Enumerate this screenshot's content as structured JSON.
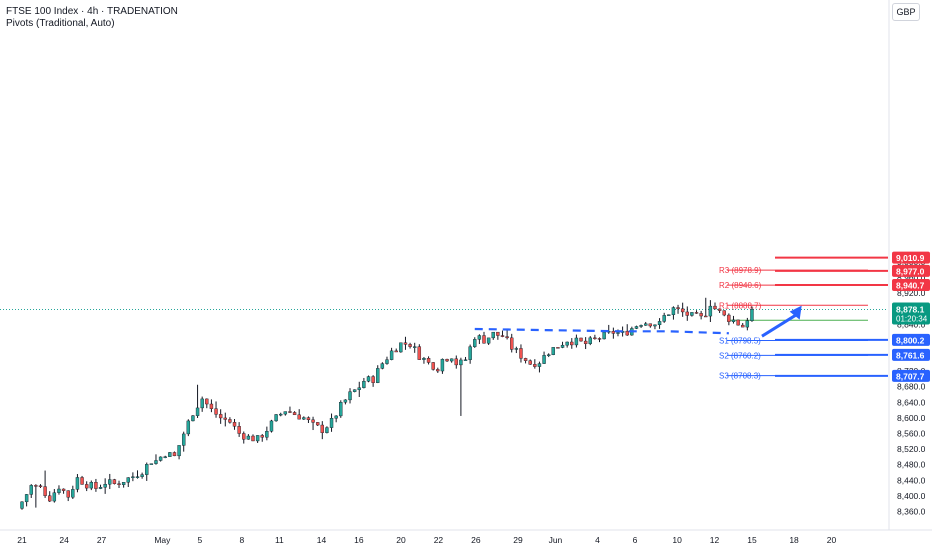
{
  "header": {
    "title": "FTSE 100 Index · 4h · TRADENATION",
    "indicator": "Pivots (Traditional, Auto)"
  },
  "currency": "GBP",
  "colors": {
    "up": "#26a69a",
    "down": "#ef5350",
    "wick": "#131722",
    "resistance": "#f23645",
    "support": "#2962ff",
    "pivot": "#4caf50",
    "price": "#089981",
    "dotted": "#26a69a"
  },
  "chart_data": {
    "type": "candlestick",
    "y_range": [
      8340,
      9020
    ],
    "y_ticks": [
      {
        "value": 9000,
        "label": "9,000.0"
      },
      {
        "value": 8960,
        "label": "8,960.0"
      },
      {
        "value": 8920,
        "label": "8,920.0"
      },
      {
        "value": 8880,
        "label": "8,880.0"
      },
      {
        "value": 8840,
        "label": "8,840.0"
      },
      {
        "value": 8800,
        "label": "8,800.0"
      },
      {
        "value": 8760,
        "label": "8,760.0"
      },
      {
        "value": 8720,
        "label": "8,720.0"
      },
      {
        "value": 8680,
        "label": "8,680.0"
      },
      {
        "value": 8640,
        "label": "8,640.0"
      },
      {
        "value": 8600,
        "label": "8,600.0"
      },
      {
        "value": 8560,
        "label": "8,560.0"
      },
      {
        "value": 8520,
        "label": "8,520.0"
      },
      {
        "value": 8480,
        "label": "8,480.0"
      },
      {
        "value": 8440,
        "label": "8,440.0"
      },
      {
        "value": 8400,
        "label": "8,400.0"
      },
      {
        "value": 8360,
        "label": "8,360.0"
      }
    ],
    "x_range": [
      0,
      184
    ],
    "x_labels": [
      {
        "label": "21",
        "x": 0
      },
      {
        "label": "24",
        "x": 9
      },
      {
        "label": "27",
        "x": 17
      },
      {
        "label": "May",
        "x": 30
      },
      {
        "label": "5",
        "x": 38
      },
      {
        "label": "8",
        "x": 47
      },
      {
        "label": "11",
        "x": 55
      },
      {
        "label": "14",
        "x": 64
      },
      {
        "label": "16",
        "x": 72
      },
      {
        "label": "20",
        "x": 81
      },
      {
        "label": "22",
        "x": 89
      },
      {
        "label": "26",
        "x": 97
      },
      {
        "label": "29",
        "x": 106
      },
      {
        "label": "Jun",
        "x": 114
      },
      {
        "label": "4",
        "x": 123
      },
      {
        "label": "6",
        "x": 131
      },
      {
        "label": "10",
        "x": 140
      },
      {
        "label": "12",
        "x": 148
      },
      {
        "label": "15",
        "x": 156
      },
      {
        "label": "18",
        "x": 165
      },
      {
        "label": "20",
        "x": 173
      }
    ],
    "pivots": [
      {
        "label": "R3 (8978.9)",
        "value": 8978.9,
        "kind": "resistance"
      },
      {
        "label": "R2 (8940.6)",
        "value": 8940.6,
        "kind": "resistance"
      },
      {
        "label": "R1 (8888.7)",
        "value": 8888.7,
        "kind": "resistance"
      },
      {
        "label": "P",
        "value": 8850.4,
        "kind": "pivot"
      },
      {
        "label": "S1 (8798.5)",
        "value": 8798.5,
        "kind": "support"
      },
      {
        "label": "S2 (8760.2)",
        "value": 8760.2,
        "kind": "support"
      },
      {
        "label": "S3 (8708.3)",
        "value": 8708.3,
        "kind": "support"
      }
    ],
    "price_tags": [
      {
        "label": "9,010.9",
        "value": 9010.9,
        "kind": "resistance"
      },
      {
        "label": "8,977.0",
        "value": 8977.0,
        "kind": "resistance"
      },
      {
        "label": "8,940.7",
        "value": 8940.7,
        "kind": "resistance"
      },
      {
        "label": "8,800.2",
        "value": 8800.2,
        "kind": "support"
      },
      {
        "label": "8,761.6",
        "value": 8761.6,
        "kind": "support"
      },
      {
        "label": "8,707.7",
        "value": 8707.7,
        "kind": "support"
      }
    ],
    "last_price": {
      "label": "8,878.1",
      "value": 8878.1,
      "countdown": "01:20:34"
    },
    "drawn_lines": [
      {
        "name": "resistance-ray-9010",
        "x1": 153,
        "y1": 9010.9,
        "x2": 184,
        "y2": 9010.9,
        "kind": "resistance"
      },
      {
        "name": "resistance-ray-8977",
        "x1": 153,
        "y1": 8977.0,
        "x2": 184,
        "y2": 8977.0,
        "kind": "resistance"
      },
      {
        "name": "resistance-ray-8940",
        "x1": 153,
        "y1": 8940.7,
        "x2": 184,
        "y2": 8940.7,
        "kind": "resistance"
      },
      {
        "name": "support-ray-8800",
        "x1": 153,
        "y1": 8800.2,
        "x2": 184,
        "y2": 8800.2,
        "kind": "support"
      },
      {
        "name": "support-ray-8761",
        "x1": 153,
        "y1": 8761.6,
        "x2": 184,
        "y2": 8761.6,
        "kind": "support"
      },
      {
        "name": "support-ray-8707",
        "x1": 153,
        "y1": 8707.7,
        "x2": 184,
        "y2": 8707.7,
        "kind": "support"
      }
    ],
    "dashed_trendline": [
      [
        98,
        8828
      ],
      [
        130,
        8822
      ],
      [
        140,
        8822
      ],
      [
        153,
        8817
      ]
    ],
    "arrow": {
      "from": [
        158,
        8830
      ],
      "to": [
        164,
        8888
      ]
    },
    "candles": []
  }
}
